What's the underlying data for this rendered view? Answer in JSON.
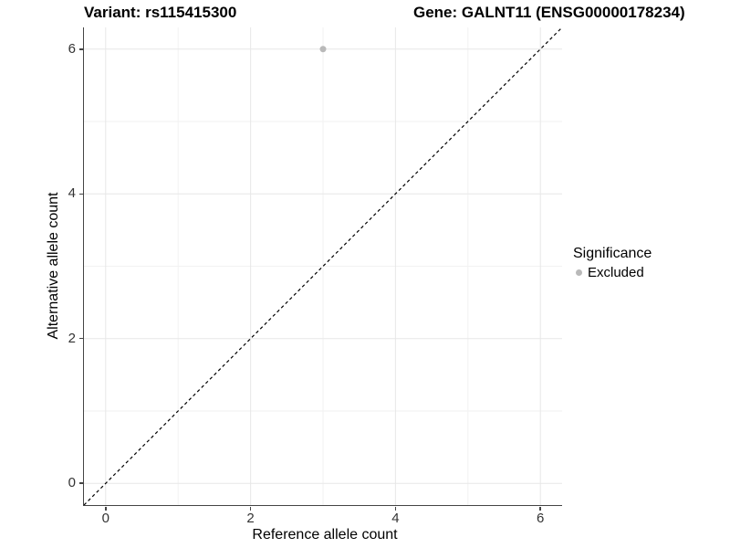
{
  "title": {
    "variant": "Variant: rs115415300",
    "gene": "Gene: GALNT11 (ENSG00000178234)"
  },
  "axes": {
    "x": {
      "label": "Reference allele count",
      "tick_labels": [
        "0",
        "2",
        "4",
        "6"
      ]
    },
    "y": {
      "label": "Alternative allele count",
      "tick_labels": [
        "0",
        "2",
        "4",
        "6"
      ]
    }
  },
  "legend": {
    "title": "Significance",
    "items": [
      {
        "label": "Excluded",
        "color": "#b9b9b9"
      }
    ]
  },
  "colors": {
    "background": "#ffffff",
    "grid_major": "#e7e7e7",
    "grid_minor": "#f2f2f2",
    "axis_line": "#444444",
    "tick_text": "#333333",
    "reference_line": "#000000",
    "point": "#b9b9b9"
  },
  "chart_data": {
    "type": "scatter",
    "title": "Variant: rs115415300   Gene: GALNT11 (ENSG00000178234)",
    "xlabel": "Reference allele count",
    "ylabel": "Alternative allele count",
    "xlim": [
      -0.3,
      6.3
    ],
    "ylim": [
      -0.3,
      6.3
    ],
    "x_ticks": [
      0,
      2,
      4,
      6
    ],
    "y_ticks": [
      0,
      2,
      4,
      6
    ],
    "x_minor_ticks": [
      1,
      3,
      5
    ],
    "y_minor_ticks": [
      1,
      3,
      5
    ],
    "grid": true,
    "legend_position": "right",
    "series": [
      {
        "name": "Excluded",
        "color": "#b9b9b9",
        "points": [
          {
            "x": 3,
            "y": 6
          }
        ]
      }
    ],
    "reference_line": {
      "type": "identity",
      "x1": -0.3,
      "y1": -0.3,
      "x2": 6.3,
      "y2": 6.3,
      "style": "dashed",
      "color": "#000000"
    }
  }
}
